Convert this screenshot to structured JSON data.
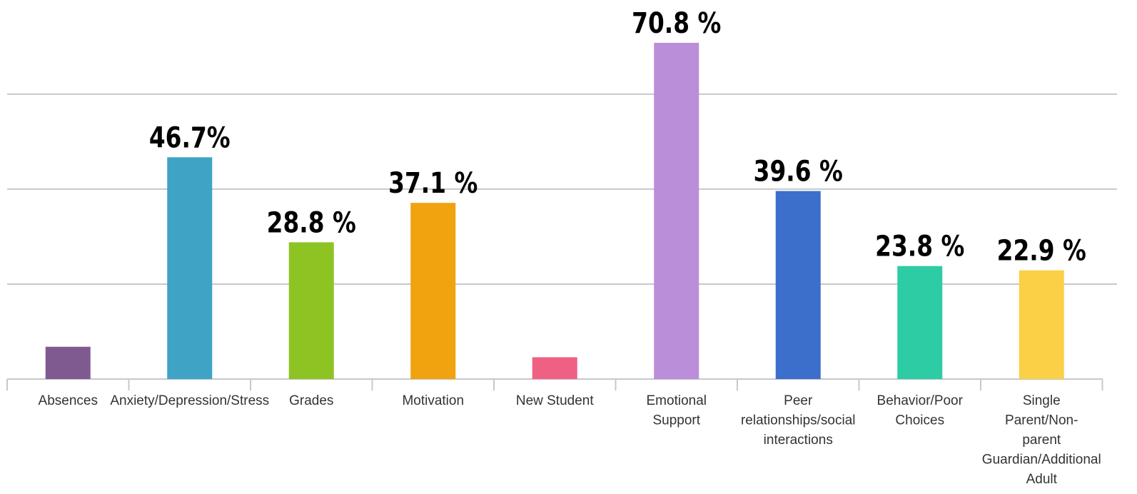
{
  "chart_data": {
    "type": "bar",
    "title": "",
    "xlabel": "",
    "ylabel": "",
    "ylim": [
      0,
      70.8
    ],
    "grid": true,
    "gridlines": [
      0,
      20,
      40,
      60
    ],
    "categories": [
      "Absences",
      "Anxiety/Depression/Stress",
      "Grades",
      "Motivation",
      "New Student",
      "Emotional Support",
      "Peer relationships/social interactions",
      "Behavior/Poor Choices",
      "Single Parent/Non-parent Guardian/Additional Adult"
    ],
    "category_lines": [
      [
        "Absences"
      ],
      [
        "Anxiety/Depression/Stress"
      ],
      [
        "Grades"
      ],
      [
        "Motivation"
      ],
      [
        "New Student"
      ],
      [
        "Emotional",
        "Support"
      ],
      [
        "Peer",
        "relationships/social",
        "interactions"
      ],
      [
        "Behavior/Poor",
        "Choices"
      ],
      [
        "Single",
        "Parent/Non-",
        "parent",
        "Guardian/Additional",
        "Adult"
      ]
    ],
    "values": [
      6.8,
      46.7,
      28.8,
      37.1,
      4.6,
      70.8,
      39.6,
      23.8,
      22.9
    ],
    "data_labels": [
      "",
      "46.7%",
      "28.8 %",
      "37.1 %",
      "",
      "70.8 %",
      "39.6 %",
      "23.8 %",
      "22.9 %"
    ],
    "colors": [
      "#7f5a91",
      "#3ea3c5",
      "#8dc424",
      "#f0a20f",
      "#ef6085",
      "#ba8ed8",
      "#3b6fcb",
      "#2ecca4",
      "#fbd046"
    ]
  }
}
